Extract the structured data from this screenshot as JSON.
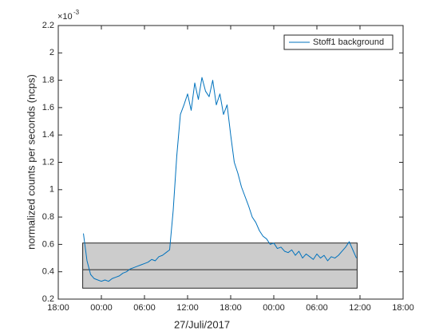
{
  "chart_data": {
    "type": "line",
    "xlabel": "27/Juli/2017",
    "ylabel": "normalized counts per seconds (ncps)",
    "y_multiplier": {
      "base": "×10",
      "exponent": "-3"
    },
    "xlim": [
      -6,
      42
    ],
    "xticks": [
      {
        "value": -6,
        "label": "18:00"
      },
      {
        "value": 0,
        "label": "00:00"
      },
      {
        "value": 6,
        "label": "06:00"
      },
      {
        "value": 12,
        "label": "12:00"
      },
      {
        "value": 18,
        "label": "18:00"
      },
      {
        "value": 24,
        "label": "00:00"
      },
      {
        "value": 30,
        "label": "06:00"
      },
      {
        "value": 36,
        "label": "12:00"
      },
      {
        "value": 42,
        "label": "18:00"
      }
    ],
    "ylim": [
      0.2,
      2.2
    ],
    "yticks": [
      0.2,
      0.4,
      0.6,
      0.8,
      1,
      1.2,
      1.4,
      1.6,
      1.8,
      2,
      2.2
    ],
    "legend_position": "upper right",
    "band": {
      "x": [
        -2.6,
        35.6
      ],
      "y": [
        0.28,
        0.61
      ],
      "line": 0.415,
      "color": "#cccccc"
    },
    "x": [
      -2.5,
      -2,
      -1.5,
      -1,
      -0.5,
      0,
      0.5,
      1,
      1.5,
      2,
      2.5,
      3,
      3.5,
      4,
      4.5,
      5,
      5.5,
      6,
      6.5,
      7,
      7.5,
      8,
      8.5,
      9,
      9.5,
      10,
      10.5,
      11,
      11.5,
      12,
      12.5,
      13,
      13.5,
      14,
      14.5,
      15,
      15.5,
      16,
      16.5,
      17,
      17.5,
      18,
      18.5,
      19,
      19.5,
      20,
      20.5,
      21,
      21.5,
      22,
      22.5,
      23,
      23.5,
      24,
      24.5,
      25,
      25.5,
      26,
      26.5,
      27,
      27.5,
      28,
      28.5,
      29,
      29.5,
      30,
      30.5,
      31,
      31.5,
      32,
      32.5,
      33,
      33.5,
      34,
      34.5,
      35,
      35.5
    ],
    "series": [
      {
        "name": "Stoff1 background",
        "color": "#0072bd",
        "values": [
          0.68,
          0.48,
          0.38,
          0.35,
          0.34,
          0.33,
          0.34,
          0.33,
          0.35,
          0.36,
          0.37,
          0.39,
          0.4,
          0.42,
          0.43,
          0.44,
          0.45,
          0.46,
          0.47,
          0.49,
          0.48,
          0.51,
          0.52,
          0.54,
          0.56,
          0.85,
          1.25,
          1.55,
          1.62,
          1.7,
          1.58,
          1.78,
          1.66,
          1.82,
          1.72,
          1.68,
          1.8,
          1.62,
          1.7,
          1.55,
          1.62,
          1.4,
          1.2,
          1.12,
          1.02,
          0.95,
          0.88,
          0.8,
          0.76,
          0.7,
          0.66,
          0.64,
          0.6,
          0.61,
          0.57,
          0.58,
          0.55,
          0.54,
          0.56,
          0.52,
          0.55,
          0.5,
          0.53,
          0.51,
          0.49,
          0.53,
          0.5,
          0.52,
          0.48,
          0.51,
          0.5,
          0.52,
          0.55,
          0.58,
          0.62,
          0.56,
          0.5
        ]
      }
    ]
  }
}
